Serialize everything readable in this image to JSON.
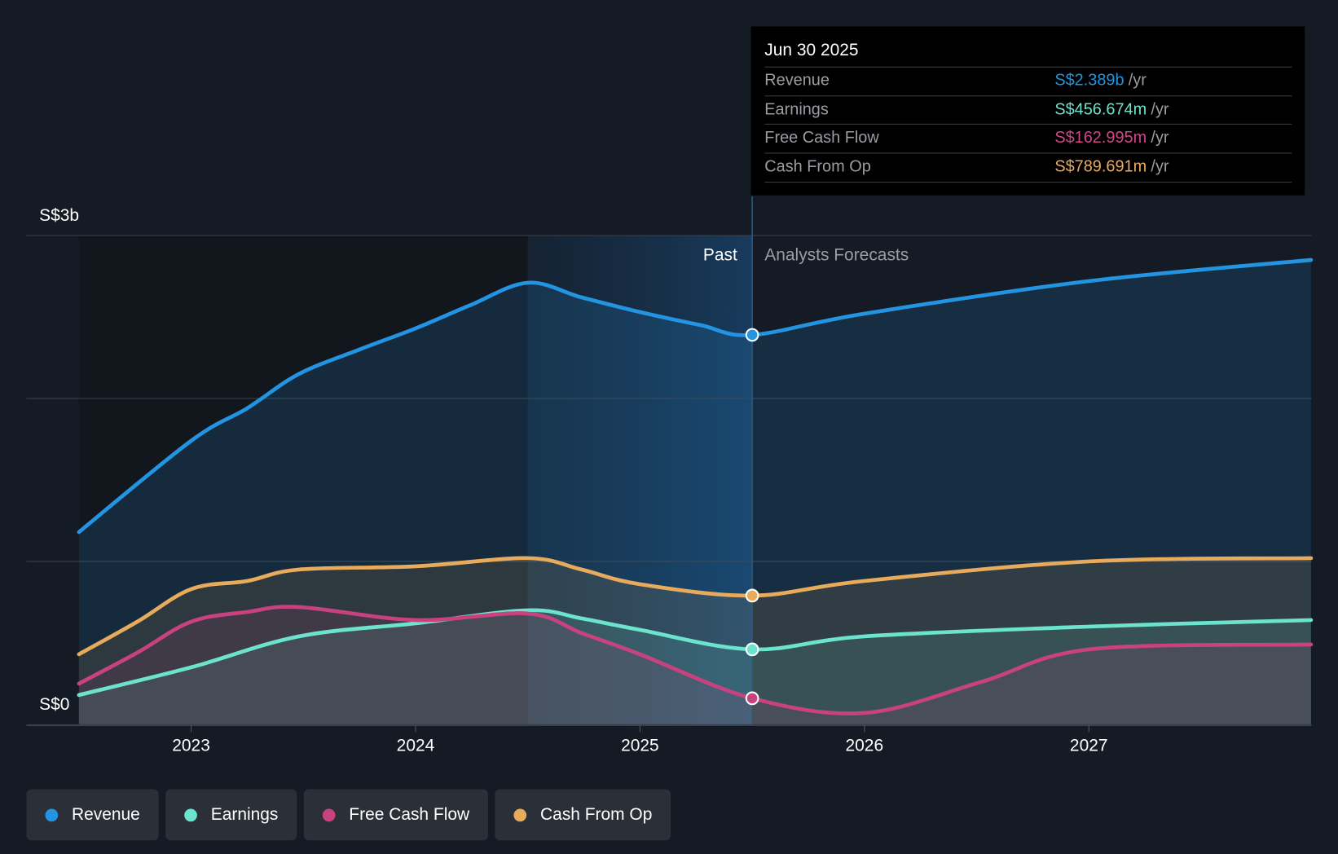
{
  "tooltip": {
    "date": "Jun 30 2025",
    "unit": "/yr",
    "rows": [
      {
        "label": "Revenue",
        "value": "S$2.389b",
        "color": "#2394e2"
      },
      {
        "label": "Earnings",
        "value": "S$456.674m",
        "color": "#6ce3cd"
      },
      {
        "label": "Free Cash Flow",
        "value": "S$162.995m",
        "color": "#d0468b"
      },
      {
        "label": "Cash From Op",
        "value": "S$789.691m",
        "color": "#e8ab5c"
      }
    ]
  },
  "labels": {
    "past": "Past",
    "forecast": "Analysts Forecasts",
    "y_top": "S$3b",
    "y_bottom": "S$0"
  },
  "legend": [
    {
      "label": "Revenue",
      "color": "#2394e2"
    },
    {
      "label": "Earnings",
      "color": "#6ce3cd"
    },
    {
      "label": "Free Cash Flow",
      "color": "#c8427f"
    },
    {
      "label": "Cash From Op",
      "color": "#e8ab5c"
    }
  ],
  "chart_data": {
    "type": "line",
    "ylabel": "",
    "xlabel": "",
    "ylim": [
      0,
      3
    ],
    "yunit": "S$ billions",
    "xticks": [
      2023,
      2024,
      2025,
      2026,
      2027
    ],
    "past_end": 2025.5,
    "highlight_start": 2024.5,
    "series": [
      {
        "name": "Revenue",
        "color": "#2394e2",
        "points": [
          [
            2022.5,
            1.18
          ],
          [
            2023,
            1.74
          ],
          [
            2023.25,
            1.94
          ],
          [
            2023.48,
            2.15
          ],
          [
            2023.75,
            2.3
          ],
          [
            2024,
            2.43
          ],
          [
            2024.24,
            2.57
          ],
          [
            2024.5,
            2.71
          ],
          [
            2024.74,
            2.62
          ],
          [
            2025,
            2.53
          ],
          [
            2025.27,
            2.45
          ],
          [
            2025.5,
            2.39
          ],
          [
            2026,
            2.52
          ],
          [
            2027,
            2.72
          ],
          [
            2027.99,
            2.85
          ]
        ]
      },
      {
        "name": "Cash From Op",
        "color": "#e8ab5c",
        "points": [
          [
            2022.5,
            0.43
          ],
          [
            2022.76,
            0.63
          ],
          [
            2023,
            0.83
          ],
          [
            2023.25,
            0.88
          ],
          [
            2023.48,
            0.95
          ],
          [
            2024,
            0.97
          ],
          [
            2024.5,
            1.02
          ],
          [
            2024.74,
            0.95
          ],
          [
            2025,
            0.86
          ],
          [
            2025.5,
            0.79
          ],
          [
            2026,
            0.88
          ],
          [
            2027,
            1.0
          ],
          [
            2027.99,
            1.02
          ]
        ]
      },
      {
        "name": "Earnings",
        "color": "#6ce3cd",
        "points": [
          [
            2022.5,
            0.18
          ],
          [
            2023,
            0.35
          ],
          [
            2023.48,
            0.54
          ],
          [
            2024,
            0.62
          ],
          [
            2024.5,
            0.7
          ],
          [
            2024.74,
            0.65
          ],
          [
            2025,
            0.58
          ],
          [
            2025.5,
            0.46
          ],
          [
            2026,
            0.54
          ],
          [
            2027,
            0.6
          ],
          [
            2027.99,
            0.64
          ]
        ]
      },
      {
        "name": "Free Cash Flow",
        "color": "#c8427f",
        "points": [
          [
            2022.5,
            0.25
          ],
          [
            2022.76,
            0.44
          ],
          [
            2023,
            0.63
          ],
          [
            2023.25,
            0.69
          ],
          [
            2023.48,
            0.72
          ],
          [
            2024,
            0.64
          ],
          [
            2024.5,
            0.68
          ],
          [
            2024.74,
            0.56
          ],
          [
            2025,
            0.43
          ],
          [
            2025.5,
            0.16
          ],
          [
            2026,
            0.07
          ],
          [
            2026.52,
            0.26
          ],
          [
            2027,
            0.46
          ],
          [
            2027.99,
            0.49
          ]
        ]
      }
    ]
  }
}
